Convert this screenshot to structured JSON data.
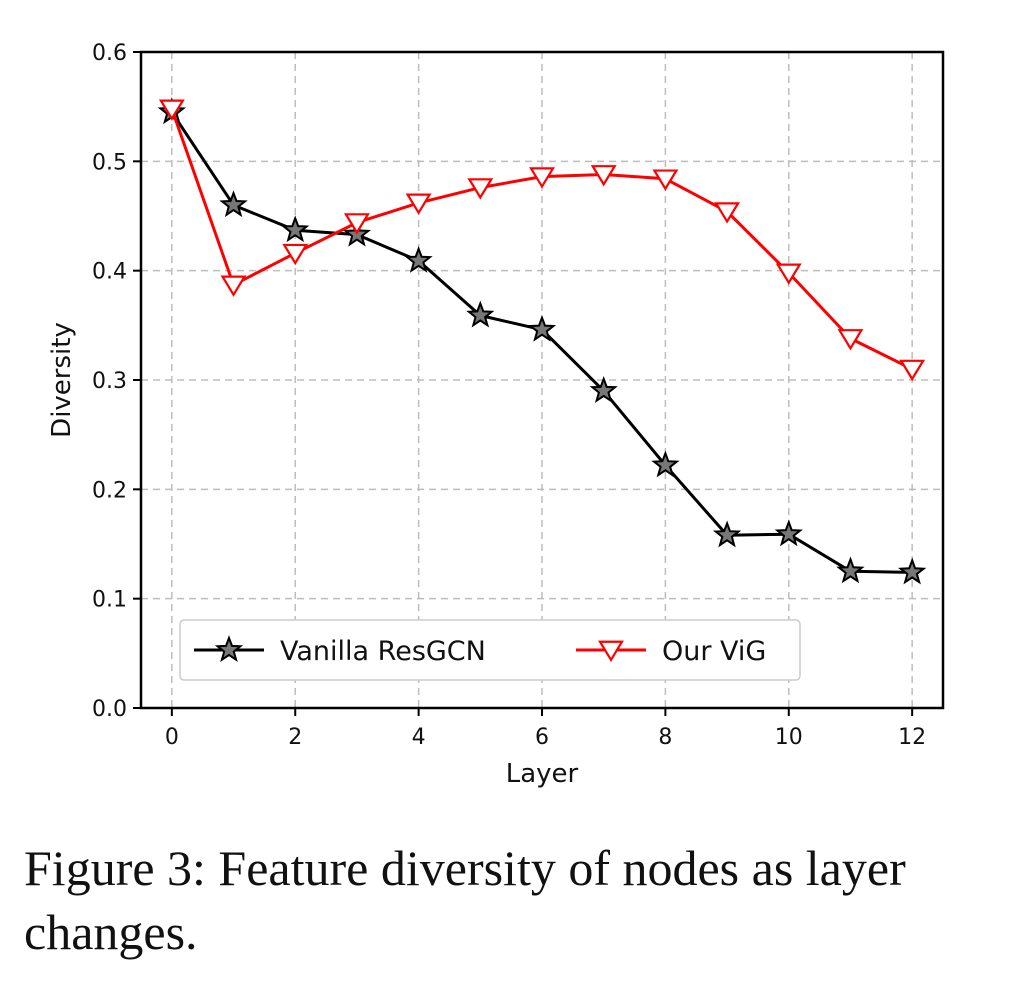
{
  "caption": "Figure 3: Feature diversity of nodes as layer changes.",
  "chart_data": {
    "type": "line",
    "xlabel": "Layer",
    "ylabel": "Diversity",
    "xlim": [
      -0.5,
      12.5
    ],
    "ylim": [
      0.0,
      0.6
    ],
    "xticks": [
      "0",
      "2",
      "4",
      "6",
      "8",
      "10",
      "12"
    ],
    "yticks": [
      "0.0",
      "0.1",
      "0.2",
      "0.3",
      "0.4",
      "0.5",
      "0.6"
    ],
    "grid": true,
    "legend_position": "lower-left",
    "x": [
      0,
      1,
      2,
      3,
      4,
      5,
      6,
      7,
      8,
      9,
      10,
      11,
      12
    ],
    "series": [
      {
        "name": "Vanilla ResGCN",
        "color": "#000000",
        "marker": "star",
        "values": [
          0.545,
          0.46,
          0.437,
          0.433,
          0.409,
          0.359,
          0.346,
          0.29,
          0.222,
          0.158,
          0.159,
          0.125,
          0.124
        ]
      },
      {
        "name": "Our ViG",
        "color": "#ff0000",
        "marker": "triangle-down",
        "values": [
          0.548,
          0.387,
          0.416,
          0.444,
          0.462,
          0.476,
          0.486,
          0.488,
          0.484,
          0.454,
          0.398,
          0.338,
          0.31
        ]
      }
    ]
  }
}
